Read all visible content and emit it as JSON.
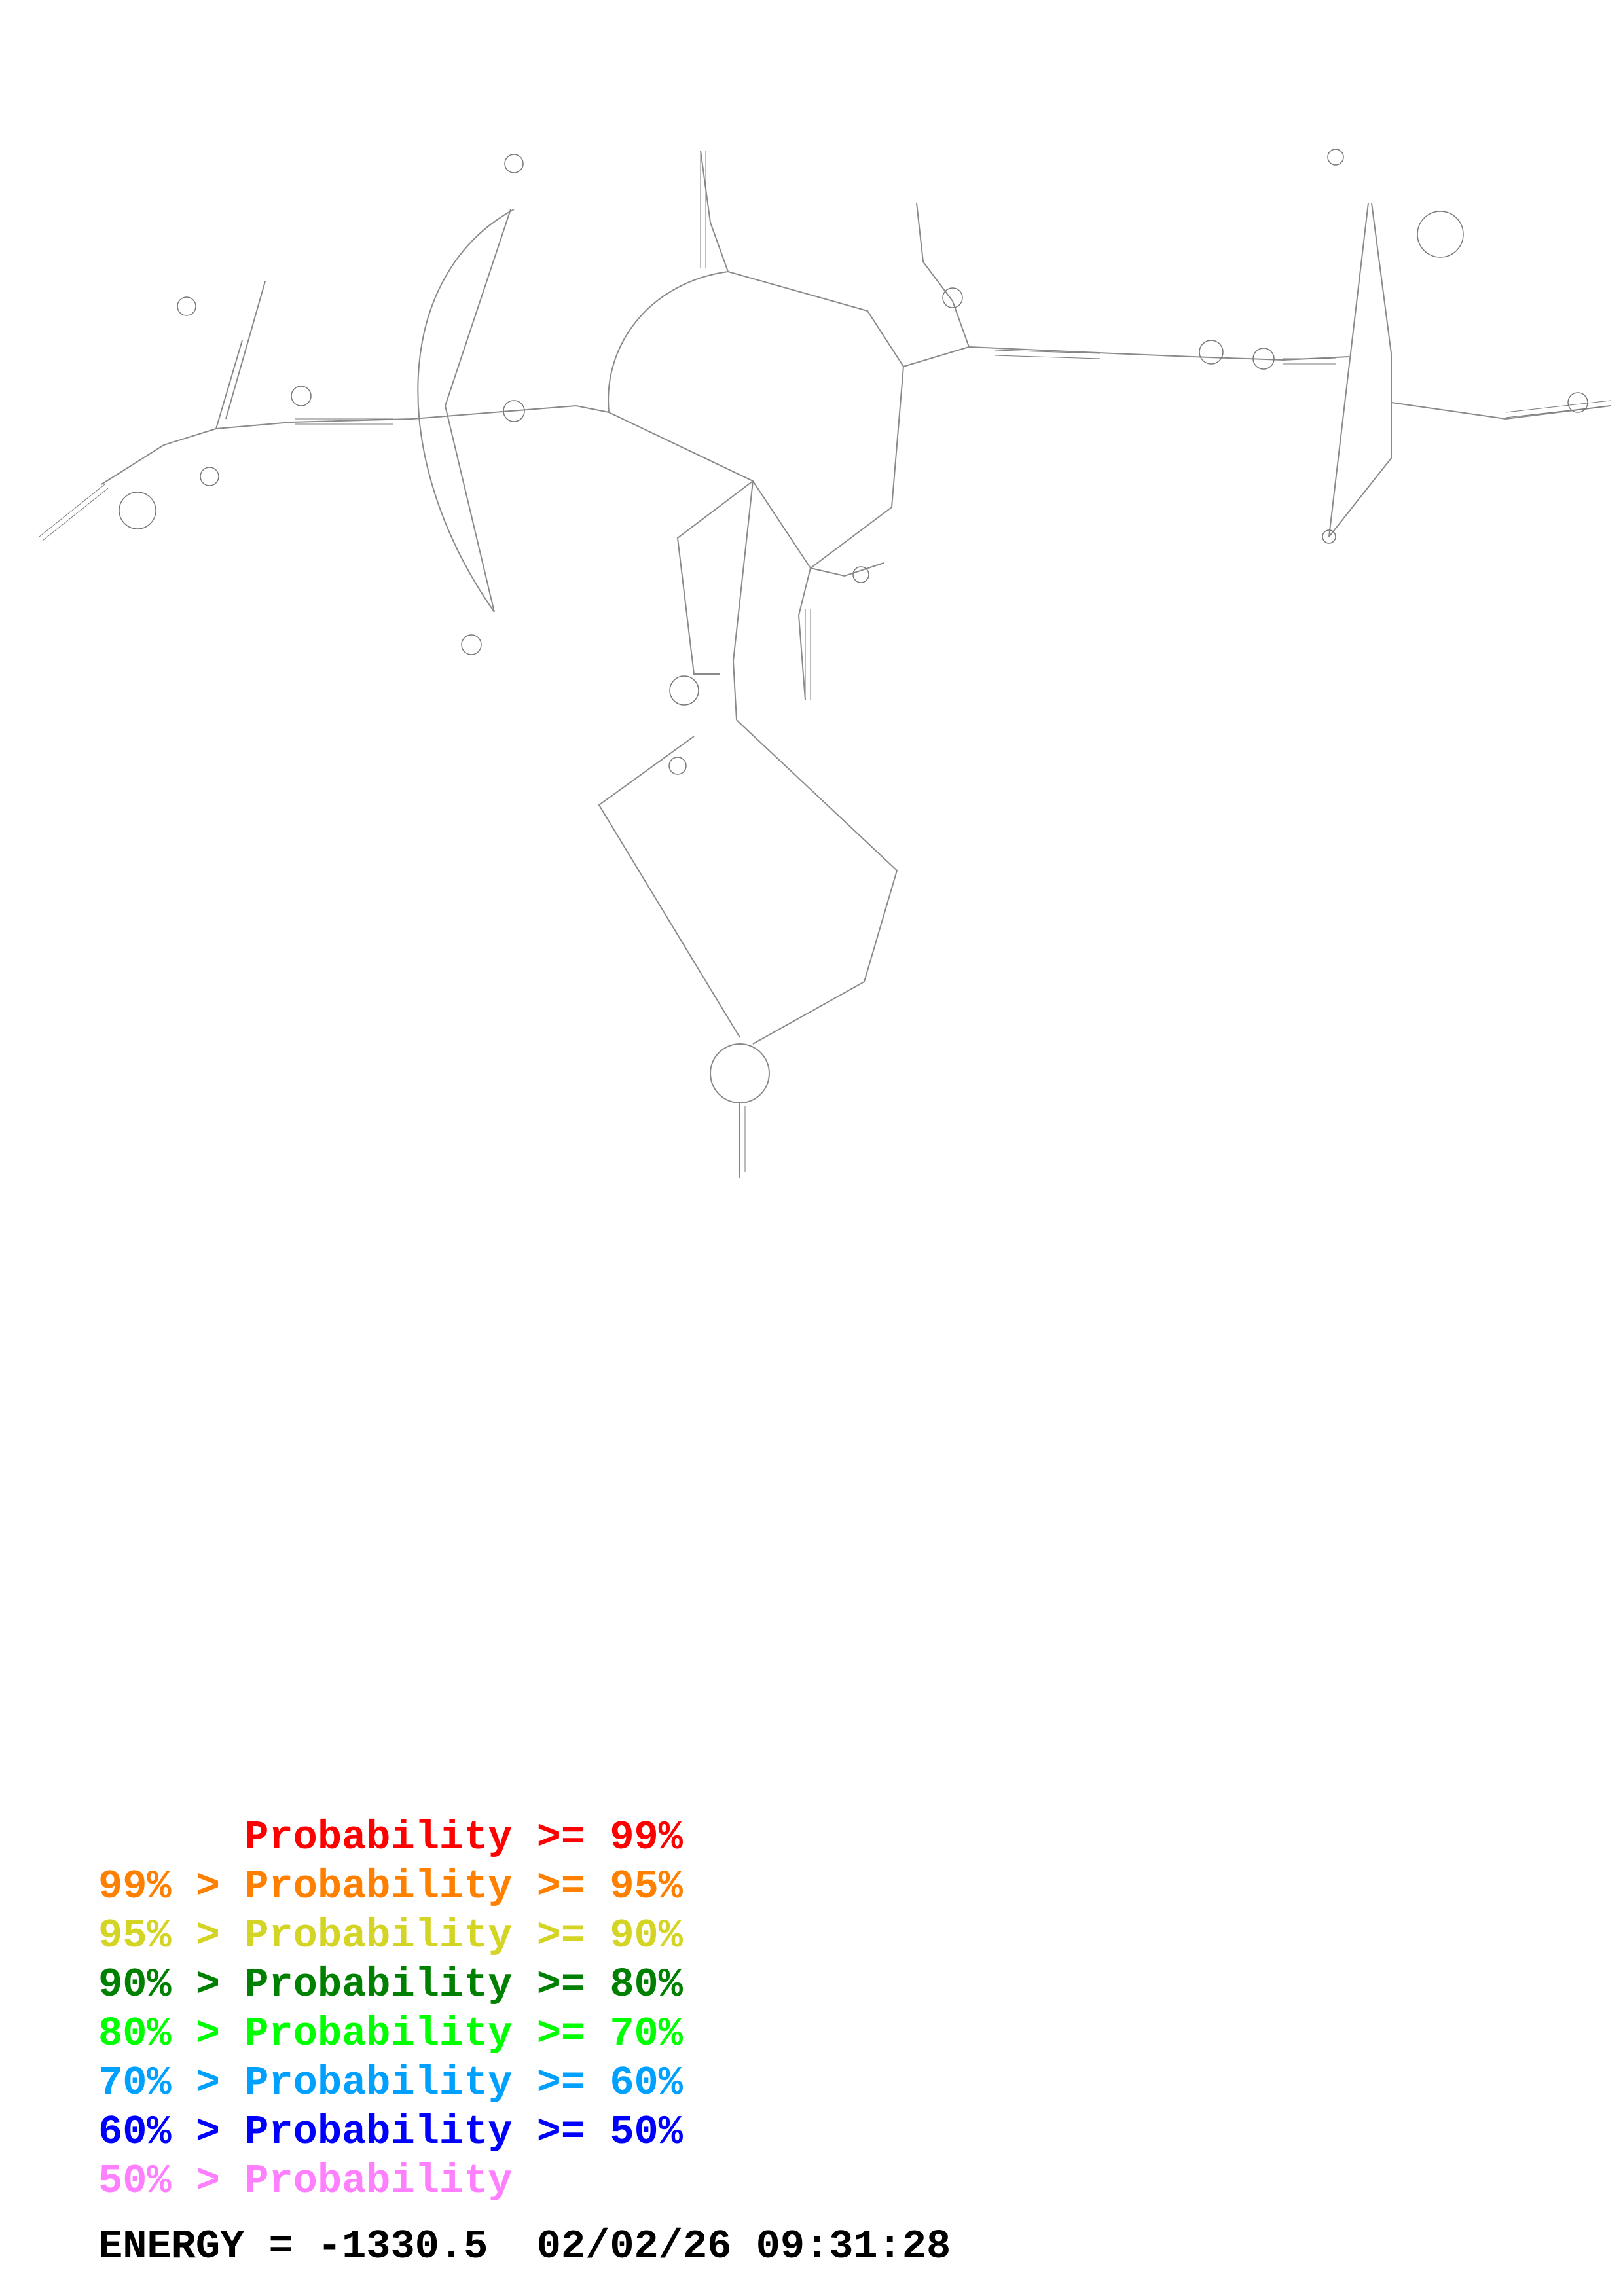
{
  "legend": [
    {
      "prefix": "    ",
      "text": "Probability >= 99%",
      "color": "#ff0000"
    },
    {
      "prefix": "99% > ",
      "text": "Probability >= 95%",
      "color": "#ff8000"
    },
    {
      "prefix": "95% > ",
      "text": "Probability >= 90%",
      "color": "#d4d425"
    },
    {
      "prefix": "90% > ",
      "text": "Probability >= 80%",
      "color": "#008000"
    },
    {
      "prefix": "80% > ",
      "text": "Probability >= 70%",
      "color": "#00ff00"
    },
    {
      "prefix": "70% > ",
      "text": "Probability >= 60%",
      "color": "#00a0ff"
    },
    {
      "prefix": "60% > ",
      "text": "Probability >= 50%",
      "color": "#0000ff"
    },
    {
      "prefix": "50% > ",
      "text": "Probability",
      "color": "#ff80ff"
    }
  ],
  "energy": {
    "label": "ENERGY = ",
    "value": "-1330.5",
    "date": "02/02/26",
    "time": "09:31:28"
  },
  "colors": {
    "backbone": "#808080",
    "pair_default": "#707070"
  }
}
